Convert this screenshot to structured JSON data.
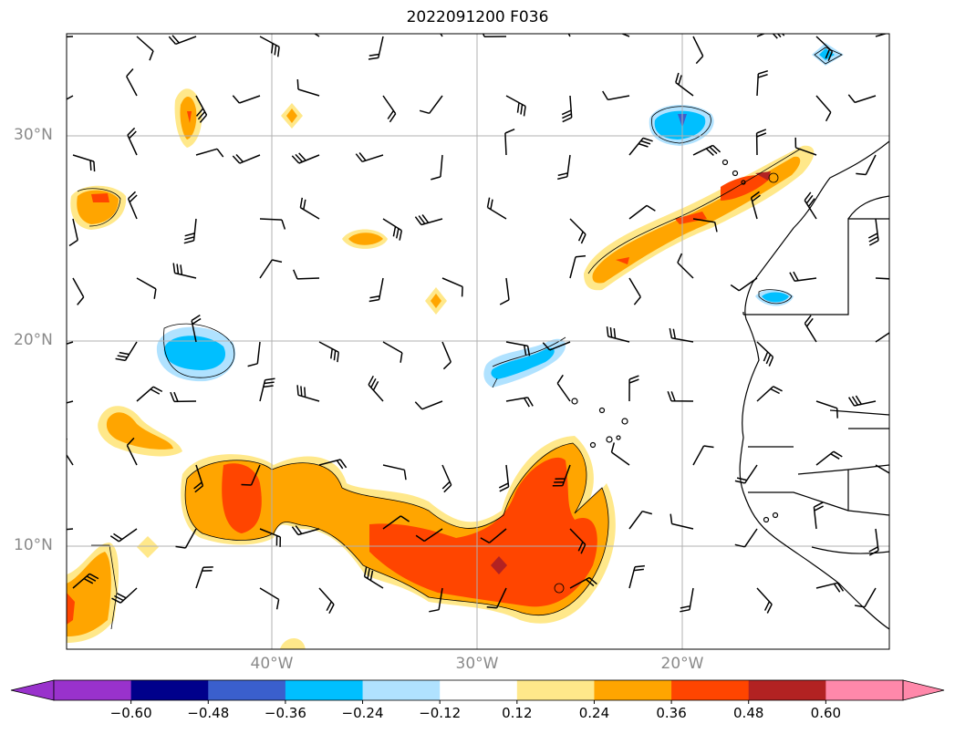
{
  "title": "2022091200 F036",
  "lat_labels": [
    "30°N",
    "20°N",
    "10°N"
  ],
  "lon_labels": [
    "40°W",
    "30°W",
    "20°W"
  ],
  "colorbar": {
    "ticks": [
      "−0.60",
      "−0.48",
      "−0.36",
      "−0.24",
      "−0.12",
      "0.12",
      "0.24",
      "0.36",
      "0.48",
      "0.60"
    ],
    "colors": [
      "#9932cc",
      "#00008b",
      "#3a5fcd",
      "#00bfff",
      "#b0e2ff",
      "#ffffff",
      "#ffe88a",
      "#ffa500",
      "#ff4500",
      "#b22222",
      "#ff88aa"
    ]
  },
  "map_extent": {
    "lon": [
      -50,
      -10
    ],
    "lat": [
      5,
      35
    ]
  },
  "colors": {
    "frame": "#000000",
    "grid": "#b0b0b0",
    "label_gray": "#8a8a8a"
  }
}
